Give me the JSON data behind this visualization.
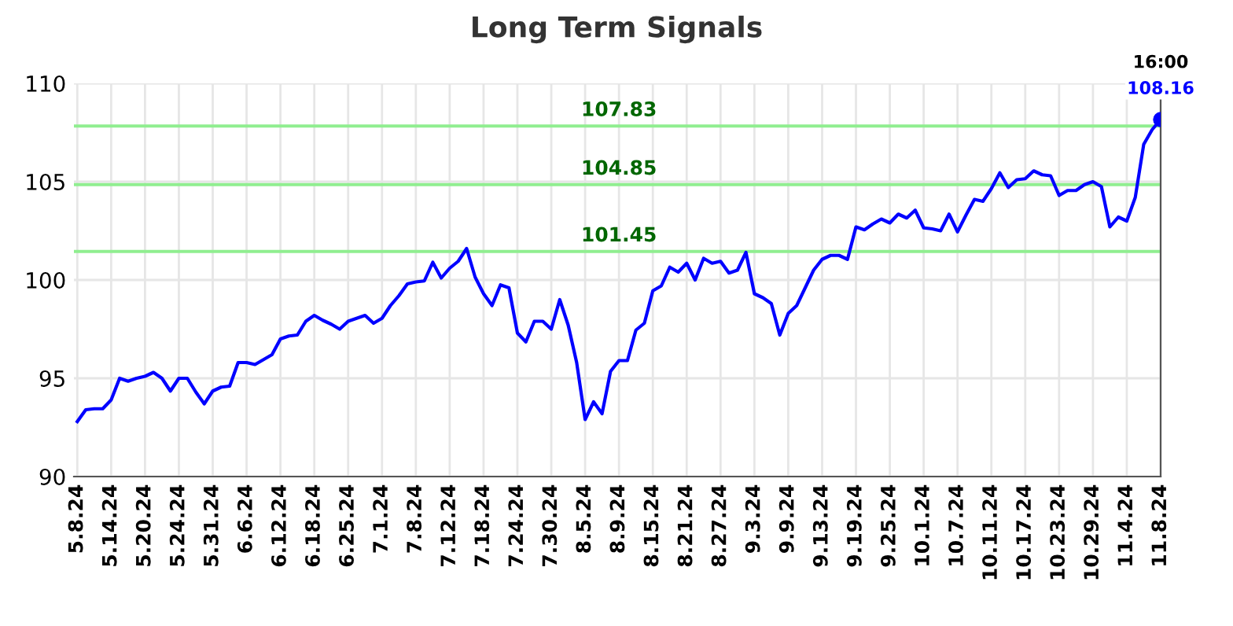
{
  "chart_data": {
    "type": "line",
    "title": "Long Term Signals",
    "categories": [
      "5.8.24",
      null,
      null,
      null,
      "5.14.24",
      null,
      null,
      null,
      "5.20.24",
      null,
      null,
      null,
      "5.24.24",
      null,
      null,
      null,
      "5.31.24",
      null,
      null,
      null,
      "6.6.24",
      null,
      null,
      null,
      "6.12.24",
      null,
      null,
      null,
      "6.18.24",
      null,
      null,
      null,
      "6.25.24",
      null,
      null,
      null,
      "7.1.24",
      null,
      null,
      null,
      "7.8.24",
      null,
      null,
      null,
      "7.12.24",
      null,
      null,
      null,
      "7.18.24",
      null,
      null,
      null,
      "7.24.24",
      null,
      null,
      null,
      "7.30.24",
      null,
      null,
      null,
      "8.5.24",
      null,
      null,
      null,
      "8.9.24",
      null,
      null,
      null,
      "8.15.24",
      null,
      null,
      null,
      "8.21.24",
      null,
      null,
      null,
      "8.27.24",
      null,
      null,
      null,
      "9.3.24",
      null,
      null,
      null,
      "9.9.24",
      null,
      null,
      null,
      "9.13.24",
      null,
      null,
      null,
      "9.19.24",
      null,
      null,
      null,
      "9.25.24",
      null,
      null,
      null,
      "10.1.24",
      null,
      null,
      null,
      "10.7.24",
      null,
      null,
      null,
      "10.11.24",
      null,
      null,
      null,
      "10.17.24",
      null,
      null,
      null,
      "10.23.24",
      null,
      null,
      null,
      "10.29.24",
      null,
      null,
      null,
      "11.4.24",
      null,
      null,
      null,
      "11.8.24"
    ],
    "series": [
      {
        "color": "#0000ff",
        "values": [
          92.8,
          93.4,
          93.45,
          93.45,
          93.9,
          95.0,
          94.85,
          95.0,
          95.1,
          95.3,
          95.0,
          94.35,
          95.0,
          95.0,
          94.3,
          93.7,
          94.35,
          94.55,
          94.6,
          95.8,
          95.8,
          95.7,
          95.95,
          96.2,
          97.0,
          97.15,
          97.2,
          97.9,
          98.2,
          97.95,
          97.75,
          97.5,
          97.9,
          98.05,
          98.2,
          97.8,
          98.05,
          98.7,
          99.2,
          99.8,
          99.9,
          99.95,
          100.9,
          100.1,
          100.6,
          100.95,
          101.6,
          100.15,
          99.3,
          98.7,
          99.75,
          99.6,
          97.3,
          96.85,
          97.9,
          97.9,
          97.5,
          99.0,
          97.7,
          95.8,
          92.9,
          93.8,
          93.2,
          95.35,
          95.9,
          95.9,
          97.45,
          97.8,
          99.45,
          99.7,
          100.65,
          100.4,
          100.85,
          100.0,
          101.1,
          100.85,
          100.95,
          100.35,
          100.5,
          101.4,
          99.3,
          99.1,
          98.8,
          97.2,
          98.3,
          98.7,
          99.6,
          100.5,
          101.05,
          101.25,
          101.25,
          101.05,
          102.7,
          102.55,
          102.85,
          103.1,
          102.9,
          103.35,
          103.15,
          103.55,
          102.65,
          102.6,
          102.5,
          103.35,
          102.45,
          103.3,
          104.1,
          104.0,
          104.65,
          105.45,
          104.7,
          105.1,
          105.15,
          105.55,
          105.35,
          105.3,
          104.3,
          104.55,
          104.55,
          104.85,
          105.0,
          104.75,
          102.7,
          103.2,
          103.0,
          104.2,
          106.9,
          107.65,
          108.16
        ]
      },
      {
        "type": "scatter",
        "color": "#0000ff",
        "x": [
          "11.8.24"
        ],
        "values": [
          108.16
        ],
        "value_labels": [
          "108.16"
        ]
      }
    ],
    "ylim": [
      90,
      110
    ],
    "yticks": [
      90,
      95,
      100,
      105,
      110
    ],
    "grid": true,
    "ref_lines": [
      {
        "axis": "y",
        "value": 107.83,
        "label": "107.83",
        "color": "#90ee90"
      },
      {
        "axis": "y",
        "value": 104.85,
        "label": "104.85",
        "color": "#90ee90"
      },
      {
        "axis": "y",
        "value": 101.45,
        "label": "101.45",
        "color": "#90ee90"
      }
    ],
    "annotations": [
      {
        "text": "16:00",
        "x": "11.8.24",
        "y": 108.16
      }
    ]
  }
}
